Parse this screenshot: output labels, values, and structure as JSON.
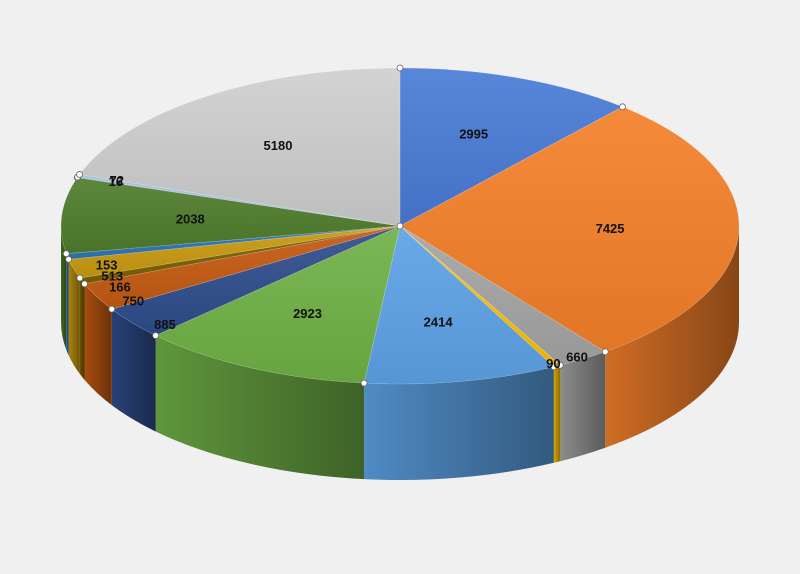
{
  "chart_data": {
    "type": "pie",
    "style": "3d-exploded-off",
    "title": "",
    "legend": "none",
    "slices": [
      {
        "value": 2995,
        "label": "2995",
        "color": "#4a7bd6"
      },
      {
        "value": 7425,
        "label": "7425",
        "color": "#f5802a"
      },
      {
        "value": 660,
        "label": "660",
        "color": "#a5a5a5"
      },
      {
        "value": 90,
        "label": "90",
        "color": "#ffc000"
      },
      {
        "value": 2414,
        "label": "2414",
        "color": "#5da3e6"
      },
      {
        "value": 2923,
        "label": "2923",
        "color": "#70b246"
      },
      {
        "value": 885,
        "label": "885",
        "color": "#2f4d8c"
      },
      {
        "value": 750,
        "label": "750",
        "color": "#c55a11"
      },
      {
        "value": 166,
        "label": "166",
        "color": "#7f6000"
      },
      {
        "value": 513,
        "label": "513",
        "color": "#c99a0f"
      },
      {
        "value": 153,
        "label": "153",
        "color": "#2e75b6"
      },
      {
        "value": 2038,
        "label": "2038",
        "color": "#4f7d2c"
      },
      {
        "value": 16,
        "label": "16",
        "color": "#8f8f8f"
      },
      {
        "value": 72,
        "label": "72",
        "color": "#9dc3e6"
      },
      {
        "value": 5180,
        "label": "5180",
        "color": "#cfcfcf"
      }
    ]
  }
}
